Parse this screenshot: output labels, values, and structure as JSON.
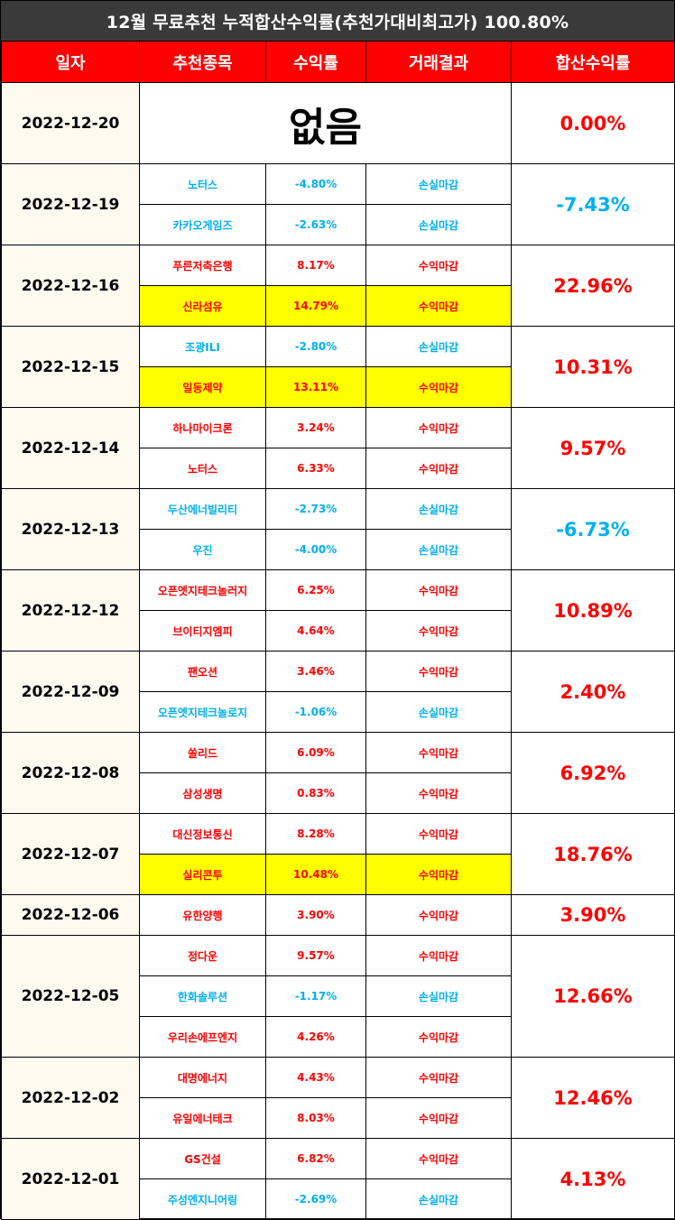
{
  "title": "12월 무료추천 누적합산수익률(추천가대비최고가) 100.80%",
  "headers": [
    "일자",
    "추천종목",
    "수익률",
    "거래결과",
    "합산수익률"
  ],
  "colors": {
    "header_bg": "#ff0000",
    "title_bg": "#3a3a3a",
    "profit": "#ff0000",
    "loss": "#00b0f0",
    "highlight": "#ffff00"
  },
  "groups": [
    {
      "date": "2022-12-20",
      "total": "0.00%",
      "total_sign": "pos",
      "none_text": "없음",
      "rows": []
    },
    {
      "date": "2022-12-19",
      "total": "-7.43%",
      "total_sign": "neg",
      "rows": [
        {
          "stock": "노터스",
          "rate": "-4.80%",
          "result": "손실마감",
          "sign": "neg",
          "hl": false
        },
        {
          "stock": "카카오게임즈",
          "rate": "-2.63%",
          "result": "손실마감",
          "sign": "neg",
          "hl": false
        }
      ]
    },
    {
      "date": "2022-12-16",
      "total": "22.96%",
      "total_sign": "pos",
      "rows": [
        {
          "stock": "푸른저축은행",
          "rate": "8.17%",
          "result": "수익마감",
          "sign": "pos",
          "hl": false
        },
        {
          "stock": "신라섬유",
          "rate": "14.79%",
          "result": "수익마감",
          "sign": "pos",
          "hl": true
        }
      ]
    },
    {
      "date": "2022-12-15",
      "total": "10.31%",
      "total_sign": "pos",
      "rows": [
        {
          "stock": "조광ILI",
          "rate": "-2.80%",
          "result": "손실마감",
          "sign": "neg",
          "hl": false
        },
        {
          "stock": "일동제약",
          "rate": "13.11%",
          "result": "수익마감",
          "sign": "pos",
          "hl": true
        }
      ]
    },
    {
      "date": "2022-12-14",
      "total": "9.57%",
      "total_sign": "pos",
      "rows": [
        {
          "stock": "하나마이크론",
          "rate": "3.24%",
          "result": "수익마감",
          "sign": "pos",
          "hl": false
        },
        {
          "stock": "노터스",
          "rate": "6.33%",
          "result": "수익마감",
          "sign": "pos",
          "hl": false
        }
      ]
    },
    {
      "date": "2022-12-13",
      "total": "-6.73%",
      "total_sign": "neg",
      "rows": [
        {
          "stock": "두산에너빌리티",
          "rate": "-2.73%",
          "result": "손실마감",
          "sign": "neg",
          "hl": false
        },
        {
          "stock": "우진",
          "rate": "-4.00%",
          "result": "손실마감",
          "sign": "neg",
          "hl": false
        }
      ]
    },
    {
      "date": "2022-12-12",
      "total": "10.89%",
      "total_sign": "pos",
      "rows": [
        {
          "stock": "오픈엣지테크놀러지",
          "rate": "6.25%",
          "result": "수익마감",
          "sign": "pos",
          "hl": false
        },
        {
          "stock": "브이티지엠피",
          "rate": "4.64%",
          "result": "수익마감",
          "sign": "pos",
          "hl": false
        }
      ]
    },
    {
      "date": "2022-12-09",
      "total": "2.40%",
      "total_sign": "pos",
      "rows": [
        {
          "stock": "팬오션",
          "rate": "3.46%",
          "result": "수익마감",
          "sign": "pos",
          "hl": false
        },
        {
          "stock": "오픈엣지테크놀로지",
          "rate": "-1.06%",
          "result": "손실마감",
          "sign": "neg",
          "hl": false
        }
      ]
    },
    {
      "date": "2022-12-08",
      "total": "6.92%",
      "total_sign": "pos",
      "rows": [
        {
          "stock": "쏠리드",
          "rate": "6.09%",
          "result": "수익마감",
          "sign": "pos",
          "hl": false
        },
        {
          "stock": "삼성생명",
          "rate": "0.83%",
          "result": "수익마감",
          "sign": "pos",
          "hl": false
        }
      ]
    },
    {
      "date": "2022-12-07",
      "total": "18.76%",
      "total_sign": "pos",
      "rows": [
        {
          "stock": "대신정보통신",
          "rate": "8.28%",
          "result": "수익마감",
          "sign": "pos",
          "hl": false
        },
        {
          "stock": "실리콘투",
          "rate": "10.48%",
          "result": "수익마감",
          "sign": "pos",
          "hl": true
        }
      ]
    },
    {
      "date": "2022-12-06",
      "total": "3.90%",
      "total_sign": "pos",
      "rows": [
        {
          "stock": "유한양행",
          "rate": "3.90%",
          "result": "수익마감",
          "sign": "pos",
          "hl": false
        }
      ]
    },
    {
      "date": "2022-12-05",
      "total": "12.66%",
      "total_sign": "pos",
      "rows": [
        {
          "stock": "정다운",
          "rate": "9.57%",
          "result": "수익마감",
          "sign": "pos",
          "hl": false
        },
        {
          "stock": "한화솔루션",
          "rate": "-1.17%",
          "result": "손실마감",
          "sign": "neg",
          "hl": false
        },
        {
          "stock": "우리손에프엔지",
          "rate": "4.26%",
          "result": "수익마감",
          "sign": "pos",
          "hl": false
        }
      ]
    },
    {
      "date": "2022-12-02",
      "total": "12.46%",
      "total_sign": "pos",
      "rows": [
        {
          "stock": "대명에너지",
          "rate": "4.43%",
          "result": "수익마감",
          "sign": "pos",
          "hl": false
        },
        {
          "stock": "유일에너테크",
          "rate": "8.03%",
          "result": "수익마감",
          "sign": "pos",
          "hl": false
        }
      ]
    },
    {
      "date": "2022-12-01",
      "total": "4.13%",
      "total_sign": "pos",
      "rows": [
        {
          "stock": "GS건설",
          "rate": "6.82%",
          "result": "수익마감",
          "sign": "pos",
          "hl": false
        },
        {
          "stock": "주성엔지니어링",
          "rate": "-2.69%",
          "result": "손실마감",
          "sign": "neg",
          "hl": false
        }
      ]
    }
  ]
}
